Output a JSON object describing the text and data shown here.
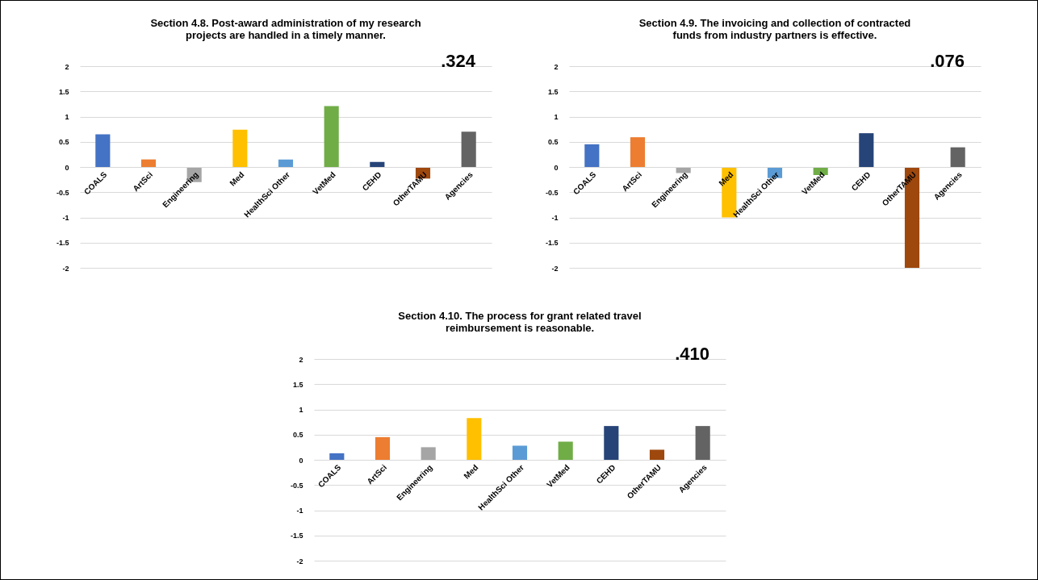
{
  "chart_data": [
    {
      "type": "bar",
      "title": "Section 4.8. Post-award administration of my research projects are handled in a timely manner.",
      "categories": [
        "COALS",
        "ArtSci",
        "Engineering",
        "Med",
        "HealthSci Other",
        "VetMed",
        "CEHD",
        "OtherTAMU",
        "Agencies"
      ],
      "values": [
        0.65,
        0.15,
        -0.3,
        0.74,
        0.15,
        1.21,
        0.1,
        -0.23,
        0.7
      ],
      "colors": [
        "#4472c4",
        "#ed7d31",
        "#a5a5a5",
        "#ffc000",
        "#5b9bd5",
        "#70ad47",
        "#264478",
        "#9e480e",
        "#636363"
      ],
      "ylim": [
        -2,
        2
      ],
      "yticks": [
        -2,
        -1.5,
        -1,
        -0.5,
        0,
        0.5,
        1,
        1.5,
        2
      ],
      "grid": "y",
      "annotations": [
        ".324"
      ]
    },
    {
      "type": "bar",
      "title": "Section 4.9. The invoicing and collection of contracted funds from industry partners is effective.",
      "categories": [
        "COALS",
        "ArtSci",
        "Engineering",
        "Med",
        "HealthSci Other",
        "VetMed",
        "CEHD",
        "OtherTAMU",
        "Agencies"
      ],
      "values": [
        0.45,
        0.59,
        -0.12,
        -1.0,
        -0.22,
        -0.16,
        0.67,
        -2.0,
        0.39
      ],
      "colors": [
        "#4472c4",
        "#ed7d31",
        "#a5a5a5",
        "#ffc000",
        "#5b9bd5",
        "#70ad47",
        "#264478",
        "#9e480e",
        "#636363"
      ],
      "ylim": [
        -2,
        2
      ],
      "yticks": [
        -2,
        -1.5,
        -1,
        -0.5,
        0,
        0.5,
        1,
        1.5,
        2
      ],
      "grid": "y",
      "annotations": [
        ".076"
      ]
    },
    {
      "type": "bar",
      "title": "Section 4.10. The process for grant related travel reimbursement is reasonable.",
      "categories": [
        "COALS",
        "ArtSci",
        "Engineering",
        "Med",
        "HealthSci Other",
        "VetMed",
        "CEHD",
        "OtherTAMU",
        "Agencies"
      ],
      "values": [
        0.13,
        0.45,
        0.25,
        0.83,
        0.28,
        0.36,
        0.67,
        0.2,
        0.67
      ],
      "colors": [
        "#4472c4",
        "#ed7d31",
        "#a5a5a5",
        "#ffc000",
        "#5b9bd5",
        "#70ad47",
        "#264478",
        "#9e480e",
        "#636363"
      ],
      "ylim": [
        -2,
        2
      ],
      "yticks": [
        -2,
        -1.5,
        -1,
        -0.5,
        0,
        0.5,
        1,
        1.5,
        2
      ],
      "grid": "y",
      "annotations": [
        ".410"
      ]
    }
  ]
}
